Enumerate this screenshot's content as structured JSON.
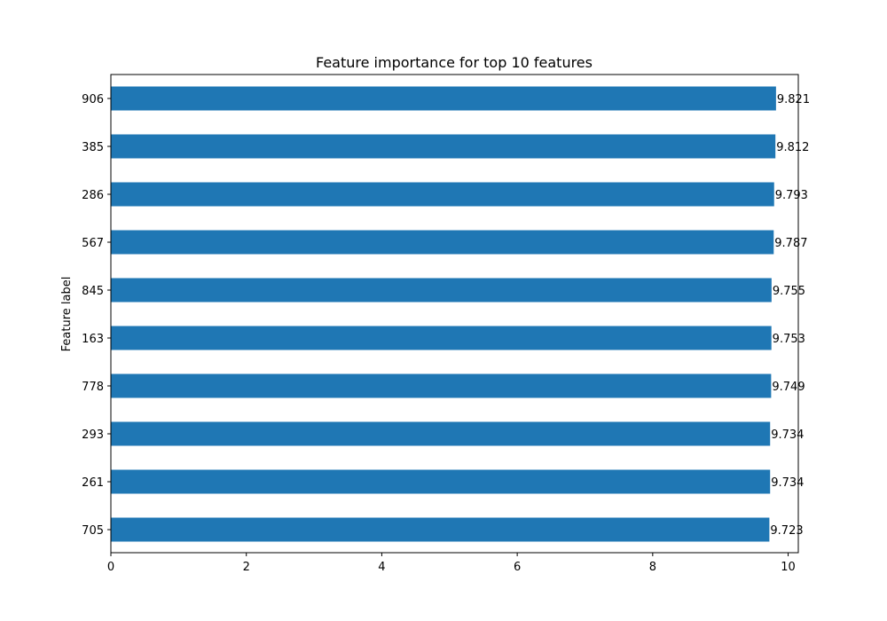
{
  "chart_data": {
    "type": "bar",
    "orientation": "horizontal",
    "title": "Feature importance for top 10 features",
    "xlabel": "",
    "ylabel": "Feature label",
    "xlim": [
      0,
      10.15
    ],
    "xticks": [
      0,
      2,
      4,
      6,
      8,
      10
    ],
    "categories": [
      "906",
      "385",
      "286",
      "567",
      "845",
      "163",
      "778",
      "293",
      "261",
      "705"
    ],
    "values": [
      9.821,
      9.812,
      9.793,
      9.787,
      9.755,
      9.753,
      9.749,
      9.734,
      9.734,
      9.723
    ],
    "value_labels": [
      "9.821",
      "9.812",
      "9.793",
      "9.787",
      "9.755",
      "9.753",
      "9.749",
      "9.734",
      "9.734",
      "9.723"
    ],
    "bar_color": "#1f77b4",
    "grid": false,
    "legend": false
  }
}
